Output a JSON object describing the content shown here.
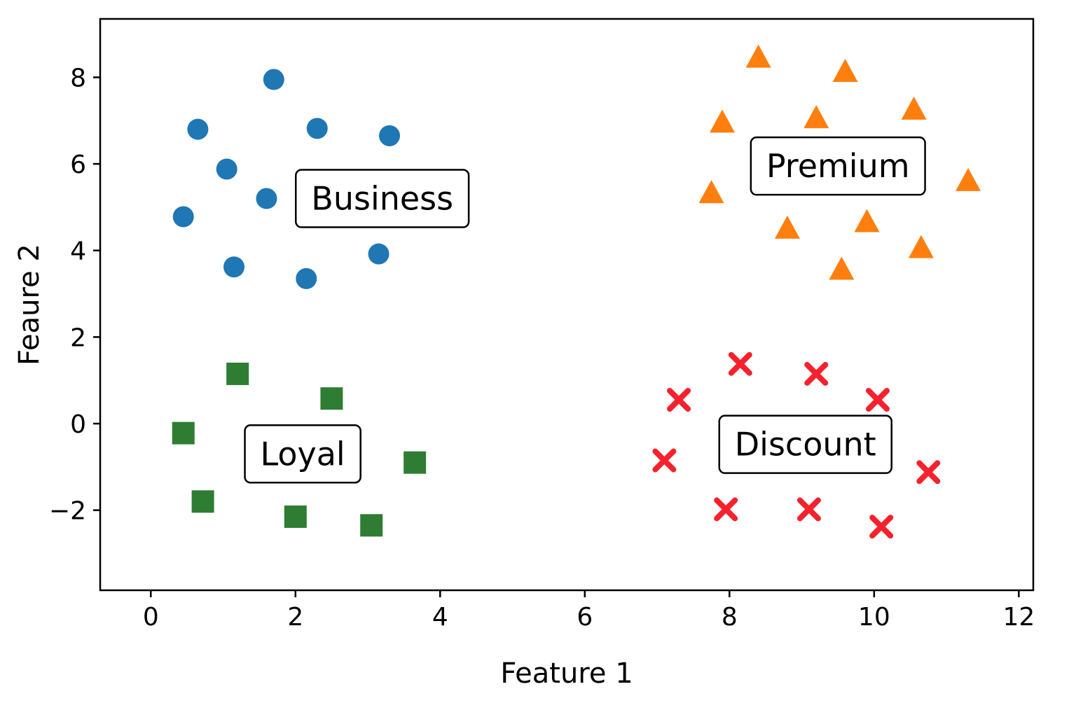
{
  "chart_data": {
    "type": "scatter",
    "xlabel": "Feature 1",
    "ylabel": "Feaure 2",
    "xlim": [
      -0.7,
      12.2
    ],
    "ylim": [
      -3.85,
      9.35
    ],
    "xticks": [
      0,
      2,
      4,
      6,
      8,
      10,
      12
    ],
    "yticks": [
      -2,
      0,
      2,
      4,
      6,
      8
    ],
    "xtick_labels": [
      "0",
      "2",
      "4",
      "6",
      "8",
      "10",
      "12"
    ],
    "ytick_labels": [
      "−2",
      "0",
      "2",
      "4",
      "6",
      "8"
    ],
    "grid": false,
    "series": [
      {
        "label": "Business",
        "marker": "circle",
        "color": "#1f77b4",
        "label_pos": [
          3.2,
          5.2
        ],
        "points": [
          [
            1.7,
            7.95
          ],
          [
            0.65,
            6.8
          ],
          [
            2.3,
            6.82
          ],
          [
            3.3,
            6.65
          ],
          [
            1.05,
            5.88
          ],
          [
            1.6,
            5.2
          ],
          [
            0.45,
            4.78
          ],
          [
            1.15,
            3.62
          ],
          [
            3.15,
            3.92
          ],
          [
            2.15,
            3.35
          ]
        ]
      },
      {
        "label": "Premium",
        "marker": "triangle",
        "color": "#ff7f0e",
        "label_pos": [
          9.5,
          5.95
        ],
        "points": [
          [
            8.4,
            8.45
          ],
          [
            9.6,
            8.12
          ],
          [
            7.9,
            6.95
          ],
          [
            9.2,
            7.05
          ],
          [
            10.55,
            7.25
          ],
          [
            11.3,
            5.6
          ],
          [
            7.75,
            5.32
          ],
          [
            8.8,
            4.5
          ],
          [
            9.9,
            4.65
          ],
          [
            10.65,
            4.05
          ],
          [
            9.55,
            3.55
          ]
        ]
      },
      {
        "label": "Loyal",
        "marker": "square",
        "color": "#2e7d32",
        "label_pos": [
          2.1,
          -0.7
        ],
        "points": [
          [
            1.2,
            1.15
          ],
          [
            2.5,
            0.58
          ],
          [
            0.45,
            -0.22
          ],
          [
            3.65,
            -0.9
          ],
          [
            0.72,
            -1.8
          ],
          [
            2.0,
            -2.15
          ],
          [
            3.05,
            -2.35
          ]
        ]
      },
      {
        "label": "Discount",
        "marker": "x",
        "color": "#f5222d",
        "label_pos": [
          9.05,
          -0.48
        ],
        "points": [
          [
            8.15,
            1.38
          ],
          [
            9.2,
            1.15
          ],
          [
            7.3,
            0.55
          ],
          [
            10.05,
            0.55
          ],
          [
            7.1,
            -0.85
          ],
          [
            10.75,
            -1.12
          ],
          [
            7.95,
            -1.98
          ],
          [
            9.1,
            -1.98
          ],
          [
            10.1,
            -2.38
          ]
        ]
      }
    ]
  }
}
